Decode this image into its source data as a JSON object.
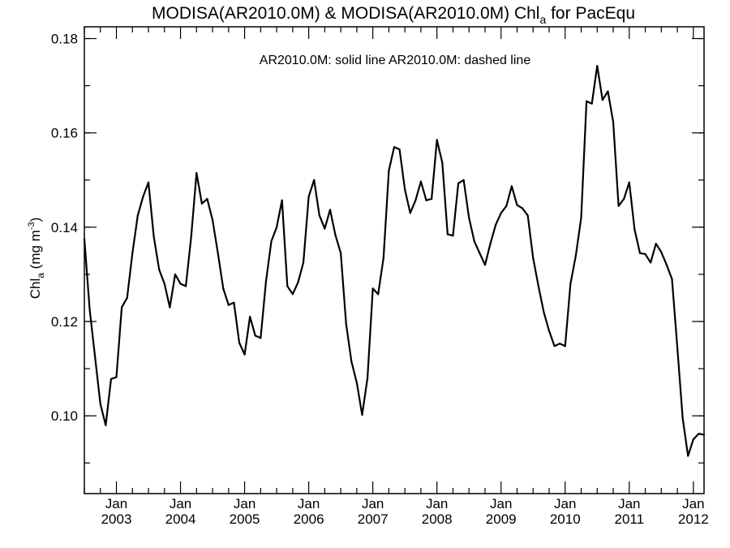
{
  "chart_data": {
    "type": "line",
    "title": {
      "main": "MODISA(AR2010.0M) & MODISA(AR2010.0M)  Chl",
      "sub": "a",
      "suffix": " for PacEqu"
    },
    "annotation": "AR2010.0M: solid line   AR2010.0M: dashed line",
    "ylabel": {
      "main": "Chl",
      "sub": "a",
      "unit_open": " (mg m",
      "unit_sup": "-3",
      "unit_close": ")"
    },
    "xlabel": "",
    "ylim": [
      0.0835,
      0.1825
    ],
    "xlim": [
      "2002-07",
      "2012-03"
    ],
    "y_ticks": [
      "0.10",
      "0.12",
      "0.14",
      "0.16",
      "0.18"
    ],
    "y_tick_values": [
      0.1,
      0.12,
      0.14,
      0.16,
      0.18
    ],
    "x_ticks": [
      {
        "month": "Jan",
        "year": "2003",
        "date": "2003-01"
      },
      {
        "month": "Jan",
        "year": "2004",
        "date": "2004-01"
      },
      {
        "month": "Jan",
        "year": "2005",
        "date": "2005-01"
      },
      {
        "month": "Jan",
        "year": "2006",
        "date": "2006-01"
      },
      {
        "month": "Jan",
        "year": "2007",
        "date": "2007-01"
      },
      {
        "month": "Jan",
        "year": "2008",
        "date": "2008-01"
      },
      {
        "month": "Jan",
        "year": "2009",
        "date": "2009-01"
      },
      {
        "month": "Jan",
        "year": "2010",
        "date": "2010-01"
      },
      {
        "month": "Jan",
        "year": "2011",
        "date": "2011-01"
      },
      {
        "month": "Jan",
        "year": "2012",
        "date": "2012-01"
      }
    ],
    "grid": false,
    "series": [
      {
        "style": "solid",
        "color": "#000000",
        "x": [
          "2002-07",
          "2002-08",
          "2002-09",
          "2002-10",
          "2002-11",
          "2002-12",
          "2003-01",
          "2003-02",
          "2003-03",
          "2003-04",
          "2003-05",
          "2003-06",
          "2003-07",
          "2003-08",
          "2003-09",
          "2003-10",
          "2003-11",
          "2003-12",
          "2004-01",
          "2004-02",
          "2004-03",
          "2004-04",
          "2004-05",
          "2004-06",
          "2004-07",
          "2004-08",
          "2004-09",
          "2004-10",
          "2004-11",
          "2004-12",
          "2005-01",
          "2005-02",
          "2005-03",
          "2005-04",
          "2005-05",
          "2005-06",
          "2005-07",
          "2005-08",
          "2005-09",
          "2005-10",
          "2005-11",
          "2005-12",
          "2006-01",
          "2006-02",
          "2006-03",
          "2006-04",
          "2006-05",
          "2006-06",
          "2006-07",
          "2006-08",
          "2006-09",
          "2006-10",
          "2006-11",
          "2006-12",
          "2007-01",
          "2007-02",
          "2007-03",
          "2007-04",
          "2007-05",
          "2007-06",
          "2007-07",
          "2007-08",
          "2007-09",
          "2007-10",
          "2007-11",
          "2007-12",
          "2008-01",
          "2008-02",
          "2008-03",
          "2008-04",
          "2008-05",
          "2008-06",
          "2008-07",
          "2008-08",
          "2008-09",
          "2008-10",
          "2008-11",
          "2008-12",
          "2009-01",
          "2009-02",
          "2009-03",
          "2009-04",
          "2009-05",
          "2009-06",
          "2009-07",
          "2009-08",
          "2009-09",
          "2009-10",
          "2009-11",
          "2009-12",
          "2010-01",
          "2010-02",
          "2010-03",
          "2010-04",
          "2010-05",
          "2010-06",
          "2010-07",
          "2010-08",
          "2010-09",
          "2010-10",
          "2010-11",
          "2010-12",
          "2011-01",
          "2011-02",
          "2011-03",
          "2011-04",
          "2011-05",
          "2011-06",
          "2011-07",
          "2011-08",
          "2011-09",
          "2011-10",
          "2011-11",
          "2011-12",
          "2012-01",
          "2012-02",
          "2012-03"
        ],
        "y": [
          0.1375,
          0.1225,
          0.1125,
          0.1025,
          0.098,
          0.1078,
          0.1082,
          0.123,
          0.125,
          0.1345,
          0.1425,
          0.1465,
          0.1495,
          0.138,
          0.131,
          0.128,
          0.123,
          0.13,
          0.128,
          0.1275,
          0.138,
          0.1515,
          0.145,
          0.146,
          0.1415,
          0.1345,
          0.127,
          0.1235,
          0.124,
          0.1155,
          0.113,
          0.121,
          0.117,
          0.1165,
          0.1285,
          0.137,
          0.14,
          0.1457,
          0.1275,
          0.1258,
          0.1283,
          0.1325,
          0.1465,
          0.15,
          0.1425,
          0.1397,
          0.1437,
          0.1383,
          0.1345,
          0.1195,
          0.1115,
          0.107,
          0.1002,
          0.108,
          0.127,
          0.1258,
          0.1335,
          0.152,
          0.157,
          0.1565,
          0.148,
          0.143,
          0.1457,
          0.1497,
          0.1457,
          0.146,
          0.1585,
          0.1537,
          0.1385,
          0.1382,
          0.1493,
          0.15,
          0.142,
          0.137,
          0.1345,
          0.132,
          0.1365,
          0.1405,
          0.143,
          0.1445,
          0.1487,
          0.1447,
          0.144,
          0.1425,
          0.1335,
          0.1275,
          0.122,
          0.118,
          0.1148,
          0.1153,
          0.1148,
          0.128,
          0.134,
          0.142,
          0.1667,
          0.1662,
          0.1742,
          0.167,
          0.1688,
          0.1623,
          0.1445,
          0.146,
          0.1495,
          0.1395,
          0.1345,
          0.1343,
          0.1325,
          0.1365,
          0.1347,
          0.132,
          0.129,
          0.1145,
          0.0995,
          0.0915,
          0.095,
          0.0962,
          0.096
        ]
      }
    ]
  }
}
